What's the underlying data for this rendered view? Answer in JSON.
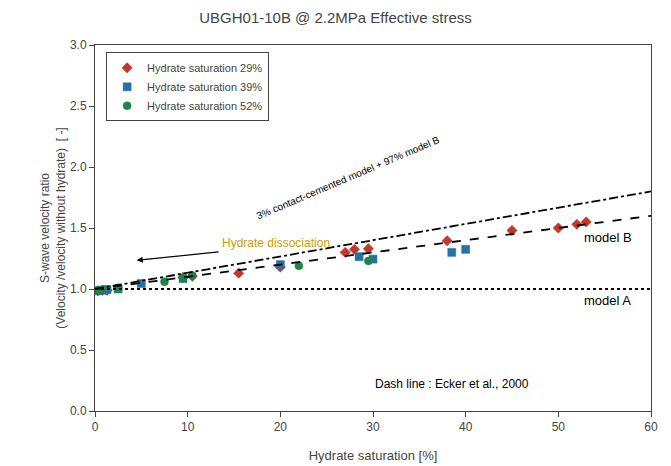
{
  "chart_data": {
    "type": "scatter",
    "title": "UBGH01-10B @ 2.2MPa Effective stress",
    "x_label": "Hydrate saturation [%]",
    "y_label": "S-wave velocity ratio\n(Velocity /velocity without hydrate)  [ -]",
    "xlim": [
      0,
      60
    ],
    "ylim": [
      0.0,
      3.0
    ],
    "xticks": [
      0,
      10,
      20,
      30,
      40,
      50,
      60
    ],
    "yticks": [
      {
        "value": 0.0,
        "label": "0.0"
      },
      {
        "value": 0.5,
        "label": "0.5"
      },
      {
        "value": 1.0,
        "label": "1.0"
      },
      {
        "value": 1.5,
        "label": "1.5"
      },
      {
        "value": 2.0,
        "label": "2.0"
      },
      {
        "value": 2.5,
        "label": "2.5"
      },
      {
        "value": 3.0,
        "label": "3.0"
      }
    ],
    "grid": false,
    "legend": "upper left",
    "series": [
      {
        "name": "Hydrate saturation 29%",
        "type": "scatter",
        "color": "#c0392b",
        "marker": "diamond",
        "x": [
          0.3,
          0.8,
          1.3,
          9.5,
          10.5,
          15.5,
          20.0,
          27.0,
          28.0,
          29.5,
          38.0,
          45.0,
          50.0,
          52.0,
          53.0
        ],
        "values": [
          0.985,
          0.99,
          0.99,
          1.095,
          1.105,
          1.13,
          1.18,
          1.3,
          1.325,
          1.33,
          1.395,
          1.48,
          1.5,
          1.53,
          1.55
        ]
      },
      {
        "name": "Hydrate saturation 39%",
        "type": "scatter",
        "color": "#2471a3",
        "marker": "square",
        "x": [
          0.3,
          0.8,
          1.3,
          2.5,
          5.0,
          9.5,
          20.0,
          28.5,
          30.0,
          38.5,
          40.0
        ],
        "values": [
          0.985,
          0.99,
          0.995,
          1.0,
          1.045,
          1.085,
          1.2,
          1.265,
          1.245,
          1.3,
          1.325
        ]
      },
      {
        "name": "Hydrate saturation 52%",
        "type": "scatter",
        "color": "#1e8449",
        "marker": "circle",
        "x": [
          0.3,
          0.8,
          2.5,
          7.5,
          9.5,
          10.5,
          22.0,
          29.5
        ],
        "values": [
          0.99,
          0.995,
          1.01,
          1.06,
          1.09,
          1.11,
          1.19,
          1.23
        ]
      },
      {
        "type": "line",
        "color": "#000000",
        "line_style": "dotted",
        "x": [
          0,
          60
        ],
        "values": [
          1.0,
          1.0
        ]
      },
      {
        "type": "line",
        "color": "#000000",
        "line_style": "dashed",
        "x": [
          0,
          60
        ],
        "values": [
          1.0,
          1.6
        ]
      },
      {
        "type": "line",
        "color": "#000000",
        "line_style": "dashdot",
        "x": [
          0,
          60
        ],
        "values": [
          1.0,
          1.8
        ]
      }
    ],
    "annotations": [
      {
        "text": "Hydrate dissociation",
        "x": 13.5,
        "y": 1.305,
        "color": "#c8a000",
        "arrow_x": 4.5,
        "arrow_y": 1.235
      },
      {
        "text": "3% contact-cemented model + 97% model B",
        "x": 17,
        "y": 1.535,
        "color": "#000000"
      },
      {
        "text": "model B",
        "x": 52.5,
        "y": 1.425,
        "color": "#000000"
      },
      {
        "text": "model A",
        "x": 52.5,
        "y": 0.905,
        "color": "#000000"
      },
      {
        "text": "Dash line : Ecker et al., 2000",
        "x": 30,
        "y": 0.15,
        "color": "#000000"
      }
    ]
  }
}
